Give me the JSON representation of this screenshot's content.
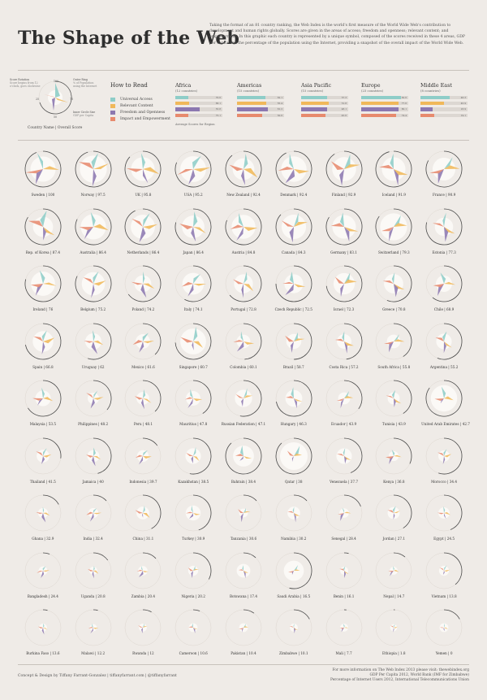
{
  "header": {
    "title": "The Shape of the Web",
    "intro": "Taking the format of an 81 country ranking, the Web Index is the world's first measure of the World Wide Web's contribution to development and human rights globally. Scores are given in the areas of access; freedom and openness; relevant content; and empowerment. In this graphic each country is represented by a unique symbol, composed of the scores received in these 4 areas, GDP per capita and the percentage of the population using the Internet, providing a snapshot of the overall impact of the World Wide Web."
  },
  "key": {
    "annotations": {
      "score_rotation": "Score Rotation",
      "score_rotation_note": "Score begins from 12 o'clock, goes clockwise",
      "outer_ring": "Outer Ring",
      "outer_ring_note": "% of Population using the Internet",
      "inner_circle": "Inner Circle Size",
      "inner_circle_note": "GDP per Capita",
      "tick_100": "100",
      "tick_75": "75",
      "tick_50": "50",
      "tick_25": "25"
    },
    "caption": "Country Name | Overall Score"
  },
  "how_to_read": {
    "title": "How to Read",
    "items": [
      {
        "label": "Universal Access",
        "color": "#8ecdc8"
      },
      {
        "label": "Relevant Content",
        "color": "#f0b85a"
      },
      {
        "label": "Freedom and Openness",
        "color": "#8c78b0"
      },
      {
        "label": "Impact and Empowerment",
        "color": "#e78a6e"
      }
    ],
    "avg_note": "Average Scores for Region"
  },
  "regions": [
    {
      "name": "Africa",
      "count": "(12 countries)",
      "values": [
        0.28,
        0.3,
        0.52,
        0.27
      ],
      "labels": [
        "70.6",
        "66.1",
        "55.8",
        "75.1"
      ]
    },
    {
      "name": "Americas",
      "count": "(15 countries)",
      "values": [
        0.6,
        0.62,
        0.66,
        0.54
      ],
      "labels": [
        "62.1",
        "55.4",
        "61.2",
        "50.6"
      ]
    },
    {
      "name": "Asia Pacific",
      "count": "(15 countries)",
      "values": [
        0.56,
        0.58,
        0.55,
        0.52
      ],
      "labels": [
        "57.3",
        "51.8",
        "48.1",
        "45.6"
      ]
    },
    {
      "name": "Europe",
      "count": "(23 countries)",
      "values": [
        0.84,
        0.8,
        0.8,
        0.74
      ],
      "labels": [
        "82.6",
        "77.6",
        "80.1",
        "74.4"
      ]
    },
    {
      "name": "Middle East",
      "count": "(8 countries)",
      "values": [
        0.62,
        0.5,
        0.26,
        0.3
      ],
      "labels": [
        "46.3",
        "45.9",
        "23.9",
        "19.1"
      ]
    }
  ],
  "chart_data": {
    "type": "radial-glyph",
    "series": [
      {
        "name": "Universal Access"
      },
      {
        "name": "Relevant Content"
      },
      {
        "name": "Freedom and Openness"
      },
      {
        "name": "Impact and Empowerment"
      }
    ],
    "countries": [
      {
        "name": "Sweden",
        "score": "100",
        "access": 95,
        "content": 88,
        "freedom": 92,
        "impact": 100,
        "internet": 94,
        "gdp": 0.8
      },
      {
        "name": "Norway",
        "score": "97.5",
        "access": 92,
        "content": 90,
        "freedom": 96,
        "impact": 88,
        "internet": 95,
        "gdp": 0.95
      },
      {
        "name": "UK",
        "score": "95.8",
        "access": 88,
        "content": 95,
        "freedom": 80,
        "impact": 90,
        "internet": 87,
        "gdp": 0.68
      },
      {
        "name": "USA",
        "score": "95.2",
        "access": 82,
        "content": 96,
        "freedom": 88,
        "impact": 92,
        "internet": 81,
        "gdp": 0.85
      },
      {
        "name": "New Zealand",
        "score": "92.4",
        "access": 84,
        "content": 90,
        "freedom": 88,
        "impact": 80,
        "internet": 89,
        "gdp": 0.55
      },
      {
        "name": "Denmark",
        "score": "92.4",
        "access": 88,
        "content": 84,
        "freedom": 90,
        "impact": 86,
        "internet": 93,
        "gdp": 0.82
      },
      {
        "name": "Finland",
        "score": "92.9",
        "access": 86,
        "content": 90,
        "freedom": 92,
        "impact": 82,
        "internet": 91,
        "gdp": 0.7
      },
      {
        "name": "Iceland",
        "score": "91.9",
        "access": 84,
        "content": 82,
        "freedom": 94,
        "impact": 78,
        "internet": 96,
        "gdp": 0.68
      },
      {
        "name": "France",
        "score": "90.9",
        "access": 78,
        "content": 86,
        "freedom": 84,
        "impact": 80,
        "internet": 83,
        "gdp": 0.62
      },
      {
        "name": "Rep. of Korea",
        "score": "87.4",
        "access": 92,
        "content": 76,
        "freedom": 70,
        "impact": 86,
        "internet": 84,
        "gdp": 0.45
      },
      {
        "name": "Australia",
        "score": "86.4",
        "access": 80,
        "content": 84,
        "freedom": 82,
        "impact": 74,
        "internet": 82,
        "gdp": 0.8
      },
      {
        "name": "Netherlands",
        "score": "86.4",
        "access": 84,
        "content": 80,
        "freedom": 86,
        "impact": 72,
        "internet": 93,
        "gdp": 0.72
      },
      {
        "name": "Japan",
        "score": "86.4",
        "access": 82,
        "content": 76,
        "freedom": 80,
        "impact": 74,
        "internet": 79,
        "gdp": 0.6
      },
      {
        "name": "Austria",
        "score": "84.8",
        "access": 78,
        "content": 74,
        "freedom": 84,
        "impact": 70,
        "internet": 81,
        "gdp": 0.7
      },
      {
        "name": "Canada",
        "score": "84.3",
        "access": 80,
        "content": 78,
        "freedom": 84,
        "impact": 72,
        "internet": 87,
        "gdp": 0.74
      },
      {
        "name": "Germany",
        "score": "83.1",
        "access": 76,
        "content": 80,
        "freedom": 84,
        "impact": 68,
        "internet": 84,
        "gdp": 0.68
      },
      {
        "name": "Switzerland",
        "score": "79.3",
        "access": 72,
        "content": 70,
        "freedom": 82,
        "impact": 66,
        "internet": 85,
        "gdp": 0.95
      },
      {
        "name": "Estonia",
        "score": "77.3",
        "access": 76,
        "content": 66,
        "freedom": 80,
        "impact": 60,
        "internet": 79,
        "gdp": 0.35
      },
      {
        "name": "Ireland",
        "score": "76",
        "access": 72,
        "content": 70,
        "freedom": 74,
        "impact": 62,
        "internet": 79,
        "gdp": 0.72
      },
      {
        "name": "Belgium",
        "score": "75.2",
        "access": 70,
        "content": 66,
        "freedom": 76,
        "impact": 60,
        "internet": 82,
        "gdp": 0.65
      },
      {
        "name": "Poland",
        "score": "74.2",
        "access": 62,
        "content": 64,
        "freedom": 76,
        "impact": 58,
        "internet": 65,
        "gdp": 0.28
      },
      {
        "name": "Italy",
        "score": "74.1",
        "access": 60,
        "content": 68,
        "freedom": 72,
        "impact": 58,
        "internet": 58,
        "gdp": 0.55
      },
      {
        "name": "Portugal",
        "score": "72.8",
        "access": 64,
        "content": 62,
        "freedom": 74,
        "impact": 56,
        "internet": 64,
        "gdp": 0.38
      },
      {
        "name": "Czech Republic",
        "score": "72.5",
        "access": 62,
        "content": 60,
        "freedom": 76,
        "impact": 54,
        "internet": 75,
        "gdp": 0.38
      },
      {
        "name": "Israel",
        "score": "72.3",
        "access": 64,
        "content": 66,
        "freedom": 70,
        "impact": 56,
        "internet": 73,
        "gdp": 0.52
      },
      {
        "name": "Greece",
        "score": "70.8",
        "access": 56,
        "content": 62,
        "freedom": 70,
        "impact": 54,
        "internet": 56,
        "gdp": 0.4
      },
      {
        "name": "Chile",
        "score": "68.9",
        "access": 58,
        "content": 56,
        "freedom": 72,
        "impact": 52,
        "internet": 61,
        "gdp": 0.25
      },
      {
        "name": "Spain",
        "score": "66.8",
        "access": 58,
        "content": 60,
        "freedom": 66,
        "impact": 52,
        "internet": 72,
        "gdp": 0.48
      },
      {
        "name": "Uruguay",
        "score": "62",
        "access": 56,
        "content": 50,
        "freedom": 68,
        "impact": 42,
        "internet": 55,
        "gdp": 0.25
      },
      {
        "name": "Mexico",
        "score": "61.6",
        "access": 48,
        "content": 56,
        "freedom": 58,
        "impact": 50,
        "internet": 38,
        "gdp": 0.18
      },
      {
        "name": "Singapore",
        "score": "60.7",
        "access": 80,
        "content": 58,
        "freedom": 38,
        "impact": 70,
        "internet": 74,
        "gdp": 0.85
      },
      {
        "name": "Colombia",
        "score": "60.1",
        "access": 50,
        "content": 52,
        "freedom": 60,
        "impact": 48,
        "internet": 49,
        "gdp": 0.15
      },
      {
        "name": "Brazil",
        "score": "58.7",
        "access": 46,
        "content": 54,
        "freedom": 56,
        "impact": 50,
        "internet": 50,
        "gdp": 0.2
      },
      {
        "name": "Costa Rica",
        "score": "57.2",
        "access": 48,
        "content": 50,
        "freedom": 62,
        "impact": 40,
        "internet": 48,
        "gdp": 0.18
      },
      {
        "name": "South Africa",
        "score": "55.8",
        "access": 40,
        "content": 52,
        "freedom": 58,
        "impact": 46,
        "internet": 41,
        "gdp": 0.15
      },
      {
        "name": "Argentina",
        "score": "55.2",
        "access": 50,
        "content": 46,
        "freedom": 56,
        "impact": 42,
        "internet": 56,
        "gdp": 0.22
      },
      {
        "name": "Malaysia",
        "score": "53.5",
        "access": 52,
        "content": 48,
        "freedom": 40,
        "impact": 50,
        "internet": 66,
        "gdp": 0.22
      },
      {
        "name": "Philippines",
        "score": "48.2",
        "access": 38,
        "content": 48,
        "freedom": 50,
        "impact": 40,
        "internet": 36,
        "gdp": 0.08
      },
      {
        "name": "Peru",
        "score": "48.1",
        "access": 40,
        "content": 44,
        "freedom": 52,
        "impact": 36,
        "internet": 38,
        "gdp": 0.12
      },
      {
        "name": "Mauritius",
        "score": "47.8",
        "access": 44,
        "content": 40,
        "freedom": 54,
        "impact": 34,
        "internet": 41,
        "gdp": 0.18
      },
      {
        "name": "Russian Federation",
        "score": "47.1",
        "access": 52,
        "content": 42,
        "freedom": 34,
        "impact": 40,
        "internet": 53,
        "gdp": 0.3
      },
      {
        "name": "Hungary",
        "score": "46.3",
        "access": 54,
        "content": 40,
        "freedom": 48,
        "impact": 34,
        "internet": 72,
        "gdp": 0.28
      },
      {
        "name": "Ecuador",
        "score": "43.9",
        "access": 38,
        "content": 40,
        "freedom": 50,
        "impact": 30,
        "internet": 35,
        "gdp": 0.1
      },
      {
        "name": "Tunisia",
        "score": "43.9",
        "access": 36,
        "content": 40,
        "freedom": 38,
        "impact": 34,
        "internet": 41,
        "gdp": 0.1
      },
      {
        "name": "United Arab Emirates",
        "score": "42.7",
        "access": 60,
        "content": 44,
        "freedom": 20,
        "impact": 42,
        "internet": 85,
        "gdp": 0.9
      },
      {
        "name": "Thailand",
        "score": "41.5",
        "access": 38,
        "content": 36,
        "freedom": 34,
        "impact": 36,
        "internet": 27,
        "gdp": 0.12
      },
      {
        "name": "Jamaica",
        "score": "40",
        "access": 36,
        "content": 34,
        "freedom": 48,
        "impact": 28,
        "internet": 46,
        "gdp": 0.1
      },
      {
        "name": "Indonesia",
        "score": "39.7",
        "access": 30,
        "content": 38,
        "freedom": 42,
        "impact": 30,
        "internet": 15,
        "gdp": 0.09
      },
      {
        "name": "Kazakhstan",
        "score": "38.5",
        "access": 42,
        "content": 32,
        "freedom": 28,
        "impact": 32,
        "internet": 53,
        "gdp": 0.22
      },
      {
        "name": "Bahrain",
        "score": "38.4",
        "access": 50,
        "content": 36,
        "freedom": 20,
        "impact": 34,
        "internet": 88,
        "gdp": 0.5
      },
      {
        "name": "Qatar",
        "score": "38",
        "access": 58,
        "content": 34,
        "freedom": 18,
        "impact": 36,
        "internet": 88,
        "gdp": 1.0
      },
      {
        "name": "Venezuela",
        "score": "37.7",
        "access": 34,
        "content": 32,
        "freedom": 30,
        "impact": 30,
        "internet": 44,
        "gdp": 0.22
      },
      {
        "name": "Kenya",
        "score": "36.8",
        "access": 24,
        "content": 32,
        "freedom": 42,
        "impact": 34,
        "internet": 32,
        "gdp": 0.05
      },
      {
        "name": "Morocco",
        "score": "34.4",
        "access": 30,
        "content": 30,
        "freedom": 34,
        "impact": 28,
        "internet": 55,
        "gdp": 0.08
      },
      {
        "name": "Ghana",
        "score": "32.9",
        "access": 20,
        "content": 28,
        "freedom": 44,
        "impact": 26,
        "internet": 17,
        "gdp": 0.05
      },
      {
        "name": "India",
        "score": "32.4",
        "access": 18,
        "content": 34,
        "freedom": 40,
        "impact": 28,
        "internet": 13,
        "gdp": 0.05
      },
      {
        "name": "China",
        "score": "31.1",
        "access": 30,
        "content": 36,
        "freedom": 10,
        "impact": 34,
        "internet": 42,
        "gdp": 0.12
      },
      {
        "name": "Turkey",
        "score": "30.9",
        "access": 32,
        "content": 28,
        "freedom": 26,
        "impact": 28,
        "internet": 45,
        "gdp": 0.2
      },
      {
        "name": "Tanzania",
        "score": "30.6",
        "access": 16,
        "content": 26,
        "freedom": 42,
        "impact": 24,
        "internet": 13,
        "gdp": 0.03
      },
      {
        "name": "Namibia",
        "score": "30.2",
        "access": 20,
        "content": 24,
        "freedom": 42,
        "impact": 22,
        "internet": 13,
        "gdp": 0.12
      },
      {
        "name": "Senegal",
        "score": "28.4",
        "access": 18,
        "content": 24,
        "freedom": 38,
        "impact": 22,
        "internet": 19,
        "gdp": 0.04
      },
      {
        "name": "Jordan",
        "score": "27.1",
        "access": 28,
        "content": 26,
        "freedom": 22,
        "impact": 24,
        "internet": 41,
        "gdp": 0.1
      },
      {
        "name": "Egypt",
        "score": "24.5",
        "access": 24,
        "content": 24,
        "freedom": 20,
        "impact": 22,
        "internet": 44,
        "gdp": 0.08
      },
      {
        "name": "Bangladesh",
        "score": "24.4",
        "access": 14,
        "content": 22,
        "freedom": 30,
        "impact": 24,
        "internet": 6,
        "gdp": 0.03
      },
      {
        "name": "Uganda",
        "score": "20.8",
        "access": 12,
        "content": 18,
        "freedom": 30,
        "impact": 18,
        "internet": 15,
        "gdp": 0.02
      },
      {
        "name": "Zambia",
        "score": "20.4",
        "access": 12,
        "content": 16,
        "freedom": 30,
        "impact": 18,
        "internet": 13,
        "gdp": 0.04
      },
      {
        "name": "Nigeria",
        "score": "20.2",
        "access": 14,
        "content": 18,
        "freedom": 28,
        "impact": 18,
        "internet": 33,
        "gdp": 0.05
      },
      {
        "name": "Botswana",
        "score": "17.4",
        "access": 16,
        "content": 14,
        "freedom": 30,
        "impact": 12,
        "internet": 12,
        "gdp": 0.15
      },
      {
        "name": "Saudi Arabia",
        "score": "16.5",
        "access": 26,
        "content": 20,
        "freedom": 8,
        "impact": 18,
        "internet": 54,
        "gdp": 0.45
      },
      {
        "name": "Benin",
        "score": "16.1",
        "access": 10,
        "content": 16,
        "freedom": 28,
        "impact": 12,
        "internet": 4,
        "gdp": 0.02
      },
      {
        "name": "Nepal",
        "score": "14.7",
        "access": 10,
        "content": 14,
        "freedom": 24,
        "impact": 14,
        "internet": 11,
        "gdp": 0.02
      },
      {
        "name": "Vietnam",
        "score": "13.8",
        "access": 20,
        "content": 18,
        "freedom": 6,
        "impact": 16,
        "internet": 39,
        "gdp": 0.05
      },
      {
        "name": "Burkina Faso",
        "score": "13.6",
        "access": 8,
        "content": 12,
        "freedom": 26,
        "impact": 12,
        "internet": 4,
        "gdp": 0.02
      },
      {
        "name": "Malawi",
        "score": "12.2",
        "access": 8,
        "content": 12,
        "freedom": 22,
        "impact": 12,
        "internet": 4,
        "gdp": 0.01
      },
      {
        "name": "Rwanda",
        "score": "12",
        "access": 10,
        "content": 10,
        "freedom": 16,
        "impact": 14,
        "internet": 8,
        "gdp": 0.02
      },
      {
        "name": "Cameroon",
        "score": "10.6",
        "access": 8,
        "content": 10,
        "freedom": 18,
        "impact": 10,
        "internet": 6,
        "gdp": 0.03
      },
      {
        "name": "Pakistan",
        "score": "10.4",
        "access": 10,
        "content": 12,
        "freedom": 12,
        "impact": 12,
        "internet": 10,
        "gdp": 0.03
      },
      {
        "name": "Zimbabwe",
        "score": "10.1",
        "access": 6,
        "content": 10,
        "freedom": 16,
        "impact": 10,
        "internet": 17,
        "gdp": 0.02
      },
      {
        "name": "Mali",
        "score": "7.7",
        "access": 6,
        "content": 8,
        "freedom": 14,
        "impact": 8,
        "internet": 2,
        "gdp": 0.02
      },
      {
        "name": "Ethiopia",
        "score": "1.8",
        "access": 4,
        "content": 6,
        "freedom": 10,
        "impact": 4,
        "internet": 1,
        "gdp": 0.01
      },
      {
        "name": "Yemen",
        "score": "0",
        "access": 8,
        "content": 8,
        "freedom": 2,
        "impact": 6,
        "internet": 17,
        "gdp": 0.03
      }
    ]
  },
  "footer": {
    "credit": "Concept & Design by Tiffany Farrant-Gonzalez  |  tiffanyfarrant.com  |  @tiffanyfarrant",
    "source_1": "For more information on The Web Index 2013 please visit: thewebindex.org",
    "source_2": "GDP Per Capita 2012, World Bank (IMF for Zimbabwe)",
    "source_3": "Percentage of Internet Users 2012, International Telecommunications Union"
  }
}
